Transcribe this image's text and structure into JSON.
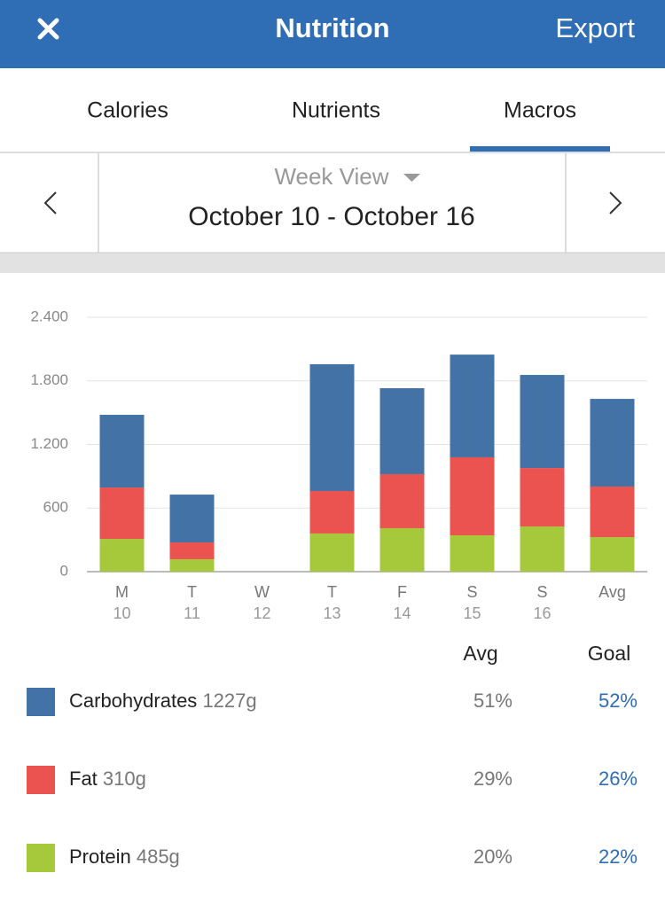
{
  "header": {
    "title": "Nutrition",
    "action": "Export"
  },
  "tabs": [
    "Calories",
    "Nutrients",
    "Macros"
  ],
  "active_tab": 2,
  "date_nav": {
    "view": "Week View",
    "range": "October 10 - October 16"
  },
  "chart_data": {
    "type": "stacked_bar",
    "categories": [
      "M",
      "T",
      "W",
      "T",
      "F",
      "S",
      "S",
      "Avg"
    ],
    "sublabels": [
      "10",
      "11",
      "12",
      "13",
      "14",
      "15",
      "16",
      null
    ],
    "series": [
      {
        "name": "Carbohydrates",
        "color": "#4373a6",
        "values": [
          686,
          451,
          0,
          1196,
          811,
          969,
          878,
          827
        ]
      },
      {
        "name": "Fat",
        "color": "#eb5350",
        "values": [
          485,
          159,
          0,
          401,
          510,
          736,
          552,
          477
        ]
      },
      {
        "name": "Protein",
        "color": "#a5c93b",
        "values": [
          309,
          117,
          0,
          360,
          410,
          343,
          426,
          326
        ]
      }
    ],
    "ylim": [
      0,
      2400
    ],
    "yticks": [
      0,
      600,
      {
        "value": 1200,
        "label": "1.200"
      },
      {
        "value": 1800,
        "label": "1.800"
      },
      {
        "value": 2400,
        "label": "2.400"
      }
    ],
    "grid": true
  },
  "summary": {
    "headers": [
      "Avg",
      "Goal"
    ],
    "rows": [
      {
        "amount": "1227g",
        "avg": "51%",
        "goal": "52%"
      },
      {
        "amount": "310g",
        "avg": "29%",
        "goal": "26%"
      },
      {
        "amount": "485g",
        "avg": "20%",
        "goal": "22%"
      }
    ]
  }
}
